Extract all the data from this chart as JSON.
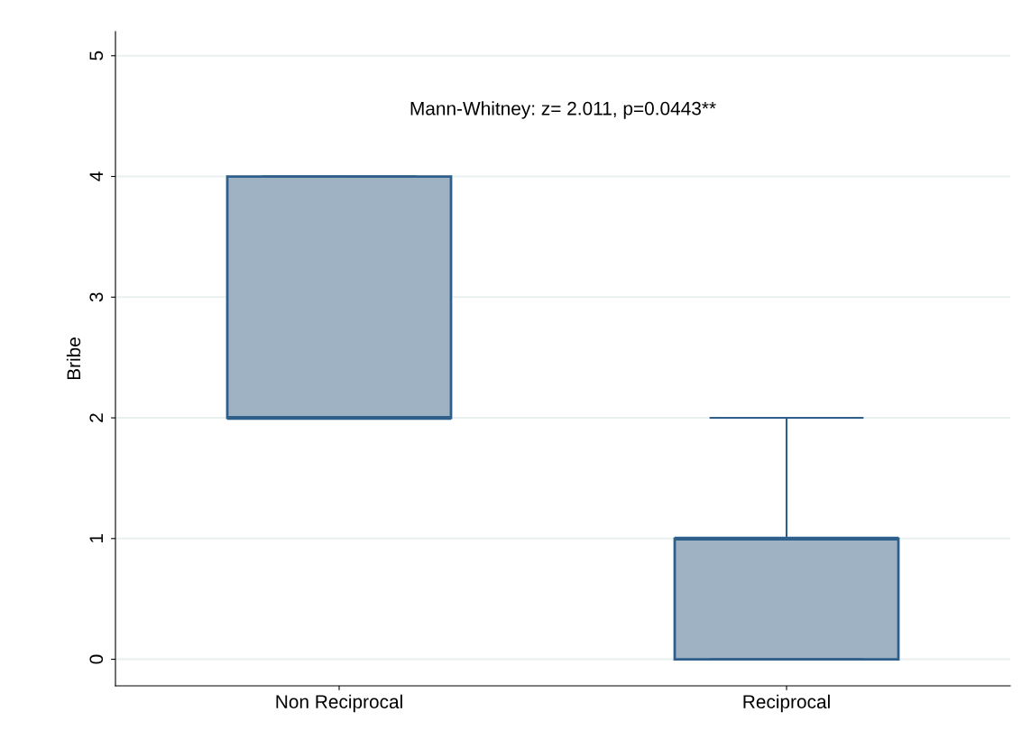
{
  "chart_data": {
    "type": "box",
    "ylabel": "Bribe",
    "categories": [
      "Non Reciprocal",
      "Reciprocal"
    ],
    "boxes": [
      {
        "low": 2,
        "q1": 2,
        "median": 2,
        "q3": 4,
        "high": 4
      },
      {
        "low": 0,
        "q1": 0,
        "median": 1,
        "q3": 1,
        "high": 2
      }
    ],
    "color": "#9fb2c4",
    "ylim": [
      -0.22,
      5.2
    ],
    "yticks": [
      0,
      1,
      2,
      3,
      4,
      5
    ],
    "grid": "y",
    "annotations": [
      "Mann-Whitney: z= 2.011, p=0.0443**"
    ]
  }
}
